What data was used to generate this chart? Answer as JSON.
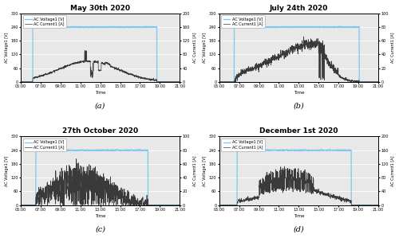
{
  "panels": [
    {
      "title": "May 30th 2020",
      "label": "(a)",
      "voltage_level": 240,
      "voltage_start": 6.2,
      "voltage_end": 18.7,
      "ylim_voltage": [
        0,
        300
      ],
      "ylim_current": [
        0,
        200
      ],
      "yticks_voltage": [
        0,
        30,
        60,
        90,
        120,
        150,
        180,
        210,
        240,
        270,
        300
      ],
      "yticks_current": [
        0,
        20,
        40,
        60,
        80,
        100,
        120,
        140,
        160,
        180,
        200
      ],
      "current_profile": "may"
    },
    {
      "title": "July 24th 2020",
      "label": "(b)",
      "voltage_level": 240,
      "voltage_start": 6.5,
      "voltage_end": 19.1,
      "ylim_voltage": [
        0,
        300
      ],
      "ylim_current": [
        0,
        100
      ],
      "yticks_voltage": [
        0,
        30,
        60,
        90,
        120,
        150,
        180,
        210,
        240,
        270,
        300
      ],
      "yticks_current": [
        0,
        10,
        20,
        30,
        40,
        50,
        60,
        70,
        80,
        90,
        100
      ],
      "current_profile": "july"
    },
    {
      "title": "27th October 2020",
      "label": "(c)",
      "voltage_level": 240,
      "voltage_start": 6.5,
      "voltage_end": 17.8,
      "ylim_voltage": [
        0,
        300
      ],
      "ylim_current": [
        0,
        100
      ],
      "yticks_voltage": [
        0,
        30,
        60,
        90,
        120,
        150,
        180,
        210,
        240,
        270,
        300
      ],
      "yticks_current": [
        0,
        10,
        20,
        30,
        40,
        50,
        60,
        70,
        80,
        90,
        100
      ],
      "current_profile": "october"
    },
    {
      "title": "December 1st 2020",
      "label": "(d)",
      "voltage_level": 240,
      "voltage_start": 6.8,
      "voltage_end": 18.3,
      "ylim_voltage": [
        0,
        300
      ],
      "ylim_current": [
        0,
        200
      ],
      "yticks_voltage": [
        0,
        30,
        60,
        90,
        120,
        150,
        180,
        210,
        240,
        270,
        300
      ],
      "yticks_current": [
        0,
        20,
        40,
        60,
        80,
        100,
        120,
        140,
        160,
        180,
        200
      ],
      "current_profile": "december"
    }
  ],
  "xticks": [
    5,
    7,
    9,
    11,
    13,
    15,
    17,
    19,
    21
  ],
  "xtick_labels": [
    "05:00",
    "07:00",
    "09:00",
    "11:00",
    "13:00",
    "15:00",
    "17:00",
    "19:00",
    "21:00"
  ],
  "xlabel": "Time",
  "ylabel_left": "AC Voltage1 [V]",
  "ylabel_right": "AC Current1 [A]",
  "voltage_color": "#7ec8f0",
  "current_color": "#3a3a3a",
  "legend_voltage": "AC Voltage1 [V]",
  "legend_current": "AC Current1 [A]",
  "bg_color": "#e8e8e8",
  "grid_color": "#ffffff"
}
